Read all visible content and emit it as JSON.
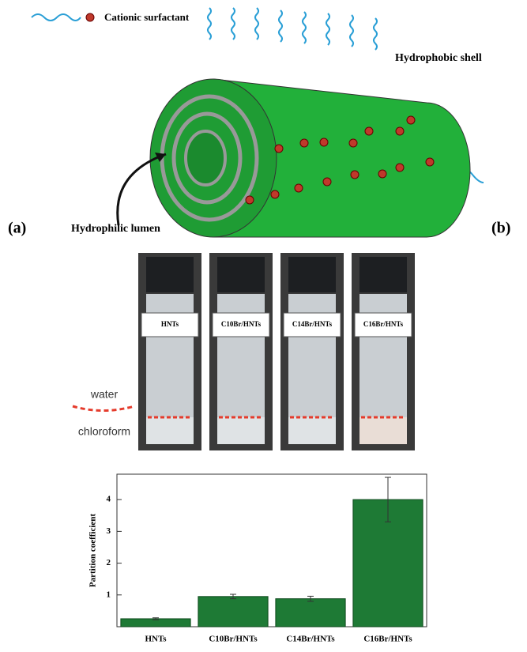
{
  "diagram": {
    "legend": "Cationic surfactant",
    "shell_label": "Hydrophobic shell",
    "lumen_label": "Hydrophilic lumen",
    "panel_a": "(a)",
    "panel_b": "(b)"
  },
  "photos": {
    "vials": [
      "HNTs",
      "C10Br/HNTs",
      "C14Br/HNTs",
      "C16Br/HNTs"
    ],
    "water_label": "water",
    "chloroform_label": "chloroform"
  },
  "chart_data": {
    "type": "bar",
    "ylabel": "Partition coefficient",
    "categories": [
      "HNTs",
      "C10Br/HNTs",
      "C14Br/HNTs",
      "C16Br/HNTs"
    ],
    "values": [
      0.25,
      0.95,
      0.88,
      4.0
    ],
    "errors": [
      0.03,
      0.07,
      0.08,
      0.7
    ],
    "color": "#1e7a35",
    "ylim": [
      0,
      4.8
    ],
    "yticks": [
      1,
      2,
      3,
      4
    ]
  }
}
